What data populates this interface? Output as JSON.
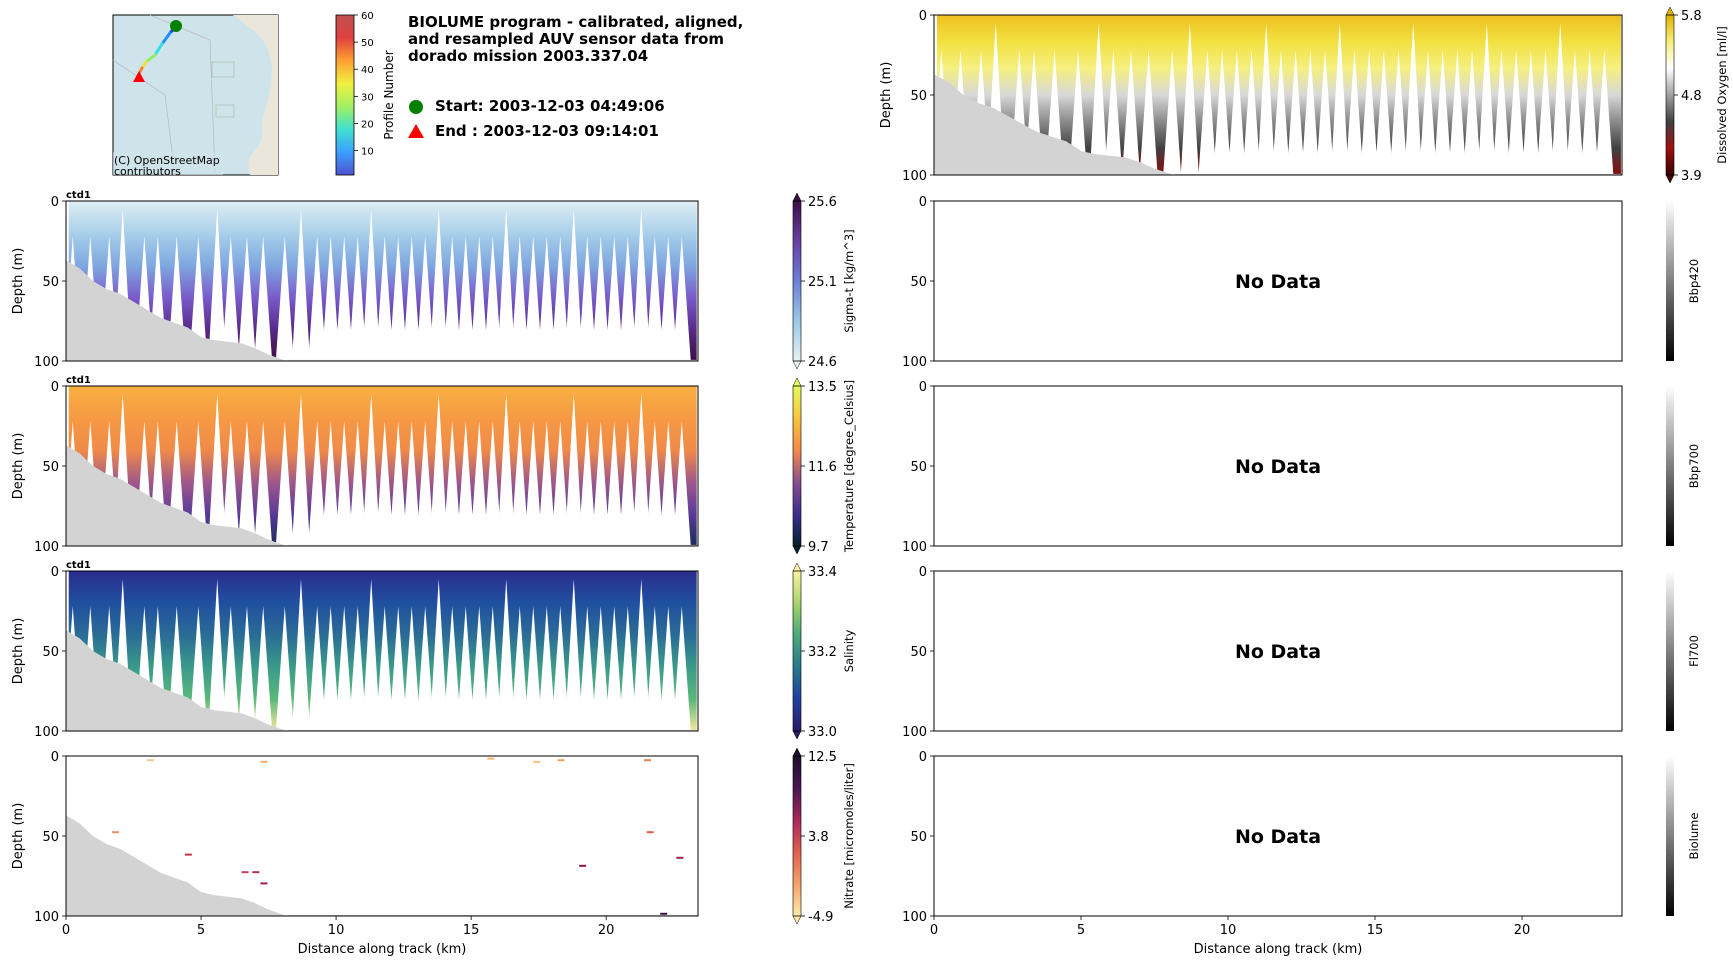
{
  "header": {
    "title_lines": [
      "BIOLUME program - calibrated, aligned,",
      "and resampled AUV sensor data from",
      "dorado mission 2003.337.04"
    ],
    "start_label": "Start: 2003-12-03 04:49:06",
    "end_label": "End  : 2003-12-03 09:14:01",
    "start_marker_color": "#008000",
    "end_marker_color": "#ff0000"
  },
  "map": {
    "attribution_line1": "(C) OpenStreetMap",
    "attribution_line2": "contributors",
    "colorbar": {
      "label": "Profile Number",
      "ticks": [
        "10",
        "20",
        "30",
        "40",
        "50",
        "60"
      ],
      "tick_values": [
        10,
        20,
        30,
        40,
        50,
        60
      ],
      "range": [
        1,
        60
      ]
    }
  },
  "chart_data": [
    {
      "type": "heatmap",
      "name": "sigma-t",
      "panel_tag": "ctd1",
      "xlabel": "",
      "ylabel": "Depth (m)",
      "xlim": [
        0,
        23.4
      ],
      "ylim": [
        100,
        0
      ],
      "yticks": [
        "0",
        "50",
        "100"
      ],
      "colorbar": {
        "label": "Sigma-t [kg/m^3]",
        "ticks": [
          "24.6",
          "25.1",
          "25.6"
        ],
        "range": [
          24.6,
          25.6
        ],
        "colors": [
          "#e6f2f2",
          "#9cc9e6",
          "#6c7fd9",
          "#6a3fa6",
          "#3a0f44"
        ]
      },
      "no_data": false
    },
    {
      "type": "heatmap",
      "name": "temperature",
      "panel_tag": "ctd1",
      "xlabel": "",
      "ylabel": "Depth (m)",
      "xlim": [
        0,
        23.4
      ],
      "ylim": [
        100,
        0
      ],
      "yticks": [
        "0",
        "50",
        "100"
      ],
      "colorbar": {
        "label": "Temperature [degree_Celsius]",
        "ticks": [
          "9.7",
          "11.6",
          "13.5"
        ],
        "range": [
          9.7,
          13.5
        ],
        "colors": [
          "#05232e",
          "#3b2d8f",
          "#8a4f8f",
          "#f4894a",
          "#f7c63e",
          "#e5fa5a"
        ]
      },
      "no_data": false
    },
    {
      "type": "heatmap",
      "name": "salinity",
      "panel_tag": "ctd1",
      "xlabel": "",
      "ylabel": "Depth (m)",
      "xlim": [
        0,
        23.4
      ],
      "ylim": [
        100,
        0
      ],
      "yticks": [
        "0",
        "50",
        "100"
      ],
      "colorbar": {
        "label": "Salinity",
        "ticks": [
          "33.0",
          "33.2",
          "33.4"
        ],
        "range": [
          33.0,
          33.4
        ],
        "colors": [
          "#2b1c66",
          "#1e3fa0",
          "#2a7a8c",
          "#4aaa7c",
          "#a7d46a",
          "#fdf2a0"
        ]
      },
      "no_data": false
    },
    {
      "type": "heatmap",
      "name": "nitrate",
      "panel_tag": "",
      "xlabel": "Distance along track (km)",
      "ylabel": "Depth (m)",
      "xlim": [
        0,
        23.4
      ],
      "ylim": [
        100,
        0
      ],
      "xticks": [
        "0",
        "5",
        "10",
        "15",
        "20"
      ],
      "xtick_values": [
        0,
        5,
        10,
        15,
        20
      ],
      "yticks": [
        "0",
        "50",
        "100"
      ],
      "colorbar": {
        "label": "Nitrate [micromoles/liter]",
        "ticks": [
          "-4.9",
          "3.8",
          "12.5"
        ],
        "range": [
          -4.9,
          12.5
        ],
        "colors": [
          "#fdeaa8",
          "#f5a36a",
          "#e0604f",
          "#a8285c",
          "#4b1550",
          "#1d0f2e"
        ]
      },
      "no_data": false
    },
    {
      "type": "heatmap",
      "name": "dissolved-oxygen",
      "panel_tag": "",
      "xlabel": "",
      "ylabel": "Depth (m)",
      "xlim": [
        0,
        23.4
      ],
      "ylim": [
        100,
        0
      ],
      "yticks": [
        "0",
        "50",
        "100"
      ],
      "colorbar": {
        "label": "Dissolved Oxygen [ml/l]",
        "ticks": [
          "3.9",
          "4.8",
          "5.8"
        ],
        "range": [
          3.9,
          5.8
        ],
        "colors": [
          "#3a0000",
          "#a01010",
          "#404040",
          "#a0a0a0",
          "#ffffff",
          "#f5f07a",
          "#e0b000"
        ]
      },
      "no_data": false
    },
    {
      "type": "heatmap",
      "name": "bbp420",
      "panel_tag": "",
      "xlabel": "",
      "ylabel": "",
      "xlim": [
        0,
        23.4
      ],
      "ylim": [
        100,
        0
      ],
      "yticks": [
        "0",
        "50",
        "100"
      ],
      "colorbar": {
        "label": "Bbp420",
        "ticks": [],
        "colors": [
          "#000000",
          "#ffffff"
        ]
      },
      "no_data": true,
      "no_data_label": "No Data"
    },
    {
      "type": "heatmap",
      "name": "bbp700",
      "panel_tag": "",
      "xlabel": "",
      "ylabel": "",
      "xlim": [
        0,
        23.4
      ],
      "ylim": [
        100,
        0
      ],
      "yticks": [
        "0",
        "50",
        "100"
      ],
      "colorbar": {
        "label": "Bbp700",
        "ticks": [],
        "colors": [
          "#000000",
          "#ffffff"
        ]
      },
      "no_data": true,
      "no_data_label": "No Data"
    },
    {
      "type": "heatmap",
      "name": "fl700",
      "panel_tag": "",
      "xlabel": "",
      "ylabel": "",
      "xlim": [
        0,
        23.4
      ],
      "ylim": [
        100,
        0
      ],
      "yticks": [
        "0",
        "50",
        "100"
      ],
      "colorbar": {
        "label": "Fl700",
        "ticks": [],
        "colors": [
          "#000000",
          "#ffffff"
        ]
      },
      "no_data": true,
      "no_data_label": "No Data"
    },
    {
      "type": "heatmap",
      "name": "biolume",
      "panel_tag": "",
      "xlabel": "Distance along track (km)",
      "ylabel": "",
      "xlim": [
        0,
        23.4
      ],
      "ylim": [
        100,
        0
      ],
      "xticks": [
        "0",
        "5",
        "10",
        "15",
        "20"
      ],
      "xtick_values": [
        0,
        5,
        10,
        15,
        20
      ],
      "yticks": [
        "0",
        "50",
        "100"
      ],
      "colorbar": {
        "label": "Biolume",
        "ticks": [],
        "colors": [
          "#000000",
          "#ffffff"
        ]
      },
      "no_data": true,
      "no_data_label": "No Data"
    }
  ],
  "bathymetry": {
    "description": "seafloor depth along track (km, m)",
    "x": [
      0,
      0.5,
      1,
      1.5,
      2,
      2.5,
      3,
      3.5,
      4,
      4.5,
      5,
      5.5,
      6,
      6.5,
      7,
      7.5,
      8,
      8.2
    ],
    "depth": [
      37,
      42,
      50,
      55,
      58,
      63,
      68,
      73,
      76,
      79,
      85,
      87,
      88,
      89,
      92,
      96,
      99,
      100
    ],
    "color": "#d3d3d3"
  },
  "profiles": {
    "description": "approx. AUV yo-yo profile turning-point distances (km)",
    "x": [
      0.25,
      0.9,
      1.6,
      2.1,
      2.9,
      3.4,
      4.1,
      4.9,
      5.6,
      6.1,
      6.7,
      7.3,
      8.1,
      8.7,
      9.3,
      9.8,
      10.3,
      10.8,
      11.3,
      11.8,
      12.3,
      12.8,
      13.3,
      13.8,
      14.3,
      14.8,
      15.3,
      15.8,
      16.3,
      16.8,
      17.3,
      17.8,
      18.3,
      18.8,
      19.3,
      19.8,
      20.3,
      20.8,
      21.3,
      21.8,
      22.3,
      22.8
    ]
  }
}
